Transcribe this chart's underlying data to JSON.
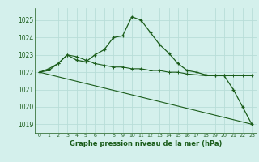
{
  "line1_x": [
    0,
    1,
    2,
    3,
    4,
    5,
    6,
    7,
    8,
    9,
    10,
    11,
    12,
    13,
    14,
    15,
    16,
    17,
    18,
    19,
    20,
    21,
    22,
    23
  ],
  "line1_y": [
    1022.0,
    1022.2,
    1022.5,
    1023.0,
    1022.7,
    1022.6,
    1023.0,
    1023.3,
    1024.0,
    1024.1,
    1025.2,
    1025.0,
    1024.3,
    1023.6,
    1023.1,
    1022.5,
    1022.1,
    1022.0,
    1021.85,
    1021.8,
    1021.8,
    1021.0,
    1020.0,
    1019.0
  ],
  "line2_x": [
    0,
    1,
    2,
    3,
    4,
    5,
    6,
    7,
    8,
    9,
    10,
    11,
    12,
    13,
    14,
    15,
    16,
    17,
    18,
    19,
    20,
    21,
    22,
    23
  ],
  "line2_y": [
    1022.0,
    1022.1,
    1022.5,
    1023.0,
    1022.9,
    1022.7,
    1022.5,
    1022.4,
    1022.3,
    1022.3,
    1022.2,
    1022.2,
    1022.1,
    1022.1,
    1022.0,
    1022.0,
    1021.9,
    1021.85,
    1021.8,
    1021.8,
    1021.8,
    1021.8,
    1021.8,
    1021.8
  ],
  "line3_x": [
    0,
    23
  ],
  "line3_y": [
    1022.0,
    1019.0
  ],
  "bg_color": "#d4f0ec",
  "grid_color": "#b8ddd8",
  "line_color": "#1a5c1a",
  "xlabel": "Graphe pression niveau de la mer (hPa)",
  "xticks": [
    0,
    1,
    2,
    3,
    4,
    5,
    6,
    7,
    8,
    9,
    10,
    11,
    12,
    13,
    14,
    15,
    16,
    17,
    18,
    19,
    20,
    21,
    22,
    23
  ],
  "yticks": [
    1019,
    1020,
    1021,
    1022,
    1023,
    1024,
    1025
  ],
  "ylim": [
    1018.5,
    1025.7
  ],
  "xlim": [
    -0.5,
    23.5
  ]
}
